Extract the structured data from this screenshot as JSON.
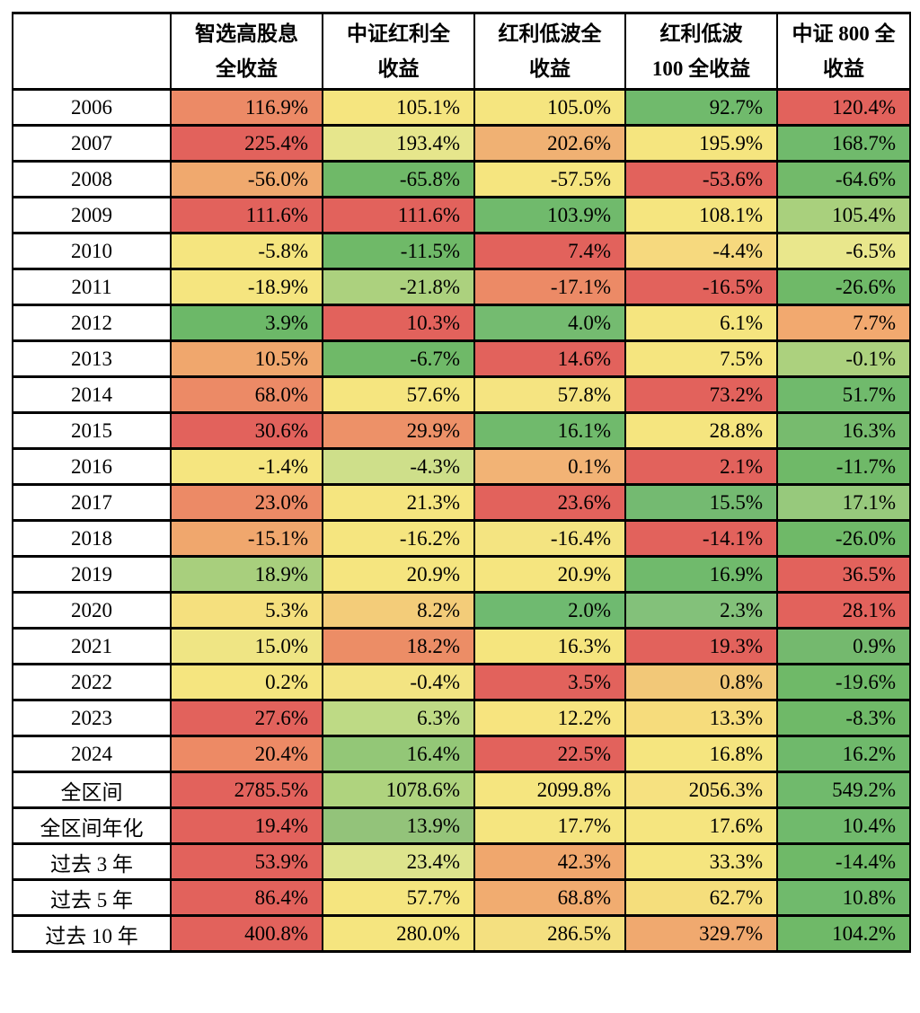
{
  "page": {
    "background": "#ffffff",
    "border_color": "#000000"
  },
  "table": {
    "corner_label": "",
    "columns": [
      {
        "label": "智选高股息\n全收益"
      },
      {
        "label": "中证红利全\n收益"
      },
      {
        "label": "红利低波全\n收益"
      },
      {
        "label": "红利低波\n100 全收益"
      },
      {
        "label": "中证 800 全\n收益"
      }
    ],
    "rows": [
      {
        "label": "2006",
        "cells": [
          {
            "v": "116.9%",
            "c": "#EC8A66"
          },
          {
            "v": "105.1%",
            "c": "#F5E57F"
          },
          {
            "v": "105.0%",
            "c": "#F5E57F"
          },
          {
            "v": "92.7%",
            "c": "#70BA6C"
          },
          {
            "v": "120.4%",
            "c": "#E2625C"
          }
        ]
      },
      {
        "label": "2007",
        "cells": [
          {
            "v": "225.4%",
            "c": "#E2625C"
          },
          {
            "v": "193.4%",
            "c": "#E6E68C"
          },
          {
            "v": "202.6%",
            "c": "#F0B173"
          },
          {
            "v": "195.9%",
            "c": "#F5E57F"
          },
          {
            "v": "168.7%",
            "c": "#70BA6C"
          }
        ]
      },
      {
        "label": "2008",
        "cells": [
          {
            "v": "-56.0%",
            "c": "#F0A96E"
          },
          {
            "v": "-65.8%",
            "c": "#6FB968"
          },
          {
            "v": "-57.5%",
            "c": "#F5E57F"
          },
          {
            "v": "-53.6%",
            "c": "#E2625C"
          },
          {
            "v": "-64.6%",
            "c": "#72BA6A"
          }
        ]
      },
      {
        "label": "2009",
        "cells": [
          {
            "v": "111.6%",
            "c": "#E2625C"
          },
          {
            "v": "111.6%",
            "c": "#E2625C"
          },
          {
            "v": "103.9%",
            "c": "#70BA6C"
          },
          {
            "v": "108.1%",
            "c": "#F5E57F"
          },
          {
            "v": "105.4%",
            "c": "#A9D07D"
          }
        ]
      },
      {
        "label": "2010",
        "cells": [
          {
            "v": "-5.8%",
            "c": "#F5E57F"
          },
          {
            "v": "-11.5%",
            "c": "#6FB968"
          },
          {
            "v": "7.4%",
            "c": "#E2625C"
          },
          {
            "v": "-4.4%",
            "c": "#F6D97E"
          },
          {
            "v": "-6.5%",
            "c": "#E9E78C"
          }
        ]
      },
      {
        "label": "2011",
        "cells": [
          {
            "v": "-18.9%",
            "c": "#F5E57F"
          },
          {
            "v": "-21.8%",
            "c": "#ACD17E"
          },
          {
            "v": "-17.1%",
            "c": "#EC8A66"
          },
          {
            "v": "-16.5%",
            "c": "#E2625C"
          },
          {
            "v": "-26.6%",
            "c": "#6FB968"
          }
        ]
      },
      {
        "label": "2012",
        "cells": [
          {
            "v": "3.9%",
            "c": "#6CB868"
          },
          {
            "v": "10.3%",
            "c": "#E2625C"
          },
          {
            "v": "4.0%",
            "c": "#74BB70"
          },
          {
            "v": "6.1%",
            "c": "#F5E57F"
          },
          {
            "v": "7.7%",
            "c": "#F2A96F"
          }
        ]
      },
      {
        "label": "2013",
        "cells": [
          {
            "v": "10.5%",
            "c": "#F0A76D"
          },
          {
            "v": "-6.7%",
            "c": "#6FB968"
          },
          {
            "v": "14.6%",
            "c": "#E2625C"
          },
          {
            "v": "7.5%",
            "c": "#F5E57F"
          },
          {
            "v": "-0.1%",
            "c": "#ACD17E"
          }
        ]
      },
      {
        "label": "2014",
        "cells": [
          {
            "v": "68.0%",
            "c": "#EC8A66"
          },
          {
            "v": "57.6%",
            "c": "#F5E57F"
          },
          {
            "v": "57.8%",
            "c": "#F5E481"
          },
          {
            "v": "73.2%",
            "c": "#E2625C"
          },
          {
            "v": "51.7%",
            "c": "#70BA6C"
          }
        ]
      },
      {
        "label": "2015",
        "cells": [
          {
            "v": "30.6%",
            "c": "#E2625C"
          },
          {
            "v": "29.9%",
            "c": "#ED9168"
          },
          {
            "v": "16.1%",
            "c": "#70BA6C"
          },
          {
            "v": "28.8%",
            "c": "#F5E57F"
          },
          {
            "v": "16.3%",
            "c": "#77BB6E"
          }
        ]
      },
      {
        "label": "2016",
        "cells": [
          {
            "v": "-1.4%",
            "c": "#F5E57F"
          },
          {
            "v": "-4.3%",
            "c": "#CEDF8A"
          },
          {
            "v": "0.1%",
            "c": "#F2B375"
          },
          {
            "v": "2.1%",
            "c": "#E2625C"
          },
          {
            "v": "-11.7%",
            "c": "#6FB968"
          }
        ]
      },
      {
        "label": "2017",
        "cells": [
          {
            "v": "23.0%",
            "c": "#EC8A66"
          },
          {
            "v": "21.3%",
            "c": "#F5E57F"
          },
          {
            "v": "23.6%",
            "c": "#E2625C"
          },
          {
            "v": "15.5%",
            "c": "#74BA71"
          },
          {
            "v": "17.1%",
            "c": "#97C97C"
          }
        ]
      },
      {
        "label": "2018",
        "cells": [
          {
            "v": "-15.1%",
            "c": "#F0A76D"
          },
          {
            "v": "-16.2%",
            "c": "#F5E57F"
          },
          {
            "v": "-16.4%",
            "c": "#F4E481"
          },
          {
            "v": "-14.1%",
            "c": "#E2625C"
          },
          {
            "v": "-26.0%",
            "c": "#6FB968"
          }
        ]
      },
      {
        "label": "2019",
        "cells": [
          {
            "v": "18.9%",
            "c": "#A8CF7D"
          },
          {
            "v": "20.9%",
            "c": "#F5E57F"
          },
          {
            "v": "20.9%",
            "c": "#F5E57F"
          },
          {
            "v": "16.9%",
            "c": "#70BA6C"
          },
          {
            "v": "36.5%",
            "c": "#E2625C"
          }
        ]
      },
      {
        "label": "2020",
        "cells": [
          {
            "v": "5.3%",
            "c": "#F5E07E"
          },
          {
            "v": "8.2%",
            "c": "#F3CC79"
          },
          {
            "v": "2.0%",
            "c": "#6FBA70"
          },
          {
            "v": "2.3%",
            "c": "#83C17A"
          },
          {
            "v": "28.1%",
            "c": "#E2625C"
          }
        ]
      },
      {
        "label": "2021",
        "cells": [
          {
            "v": "15.0%",
            "c": "#EFE584"
          },
          {
            "v": "18.2%",
            "c": "#EC8D66"
          },
          {
            "v": "16.3%",
            "c": "#F5E57E"
          },
          {
            "v": "19.3%",
            "c": "#E2625C"
          },
          {
            "v": "0.9%",
            "c": "#74B96E"
          }
        ]
      },
      {
        "label": "2022",
        "cells": [
          {
            "v": "0.2%",
            "c": "#F5E57F"
          },
          {
            "v": "-0.4%",
            "c": "#F3E482"
          },
          {
            "v": "3.5%",
            "c": "#E2625C"
          },
          {
            "v": "0.8%",
            "c": "#F2C878"
          },
          {
            "v": "-19.6%",
            "c": "#6FB968"
          }
        ]
      },
      {
        "label": "2023",
        "cells": [
          {
            "v": "27.6%",
            "c": "#E2625C"
          },
          {
            "v": "6.3%",
            "c": "#BEDA85"
          },
          {
            "v": "12.2%",
            "c": "#F7E47F"
          },
          {
            "v": "13.3%",
            "c": "#F6DC7C"
          },
          {
            "v": "-8.3%",
            "c": "#6FB968"
          }
        ]
      },
      {
        "label": "2024",
        "cells": [
          {
            "v": "20.4%",
            "c": "#ED8A65"
          },
          {
            "v": "16.4%",
            "c": "#93C777"
          },
          {
            "v": "22.5%",
            "c": "#E2625C"
          },
          {
            "v": "16.8%",
            "c": "#F5E57F"
          },
          {
            "v": "16.2%",
            "c": "#6FB96B"
          }
        ]
      },
      {
        "label": "全区间",
        "cells": [
          {
            "v": "2785.5%",
            "c": "#E2625C"
          },
          {
            "v": "1078.6%",
            "c": "#AFD37E"
          },
          {
            "v": "2099.8%",
            "c": "#F5E57F"
          },
          {
            "v": "2056.3%",
            "c": "#F6E180"
          },
          {
            "v": "549.2%",
            "c": "#70BA6C"
          }
        ]
      },
      {
        "label": "全区间年化",
        "cells": [
          {
            "v": "19.4%",
            "c": "#E2625C"
          },
          {
            "v": "13.9%",
            "c": "#93C37A"
          },
          {
            "v": "17.7%",
            "c": "#F5E57F"
          },
          {
            "v": "17.6%",
            "c": "#F5E57F"
          },
          {
            "v": "10.4%",
            "c": "#70BA6C"
          }
        ]
      },
      {
        "label": "过去 3 年",
        "cells": [
          {
            "v": "53.9%",
            "c": "#E2625C"
          },
          {
            "v": "23.4%",
            "c": "#DDE48D"
          },
          {
            "v": "42.3%",
            "c": "#F0A76D"
          },
          {
            "v": "33.3%",
            "c": "#F5E57F"
          },
          {
            "v": "-14.4%",
            "c": "#6FB968"
          }
        ]
      },
      {
        "label": "过去 5 年",
        "cells": [
          {
            "v": "86.4%",
            "c": "#E2625C"
          },
          {
            "v": "57.7%",
            "c": "#F5E57F"
          },
          {
            "v": "68.8%",
            "c": "#F1AC70"
          },
          {
            "v": "62.7%",
            "c": "#F5DE7C"
          },
          {
            "v": "10.8%",
            "c": "#70BA6C"
          }
        ]
      },
      {
        "label": "过去 10 年",
        "cells": [
          {
            "v": "400.8%",
            "c": "#E2625C"
          },
          {
            "v": "280.0%",
            "c": "#F5E57F"
          },
          {
            "v": "286.5%",
            "c": "#F4E080"
          },
          {
            "v": "329.7%",
            "c": "#F0A96F"
          },
          {
            "v": "104.2%",
            "c": "#6FB968"
          }
        ]
      }
    ]
  },
  "chart_data": {
    "type": "heatmap",
    "title": "",
    "columns": [
      "智选高股息全收益",
      "中证红利全收益",
      "红利低波全收益",
      "红利低波 100 全收益",
      "中证 800 全收益"
    ],
    "row_labels": [
      "2006",
      "2007",
      "2008",
      "2009",
      "2010",
      "2011",
      "2012",
      "2013",
      "2014",
      "2015",
      "2016",
      "2017",
      "2018",
      "2019",
      "2020",
      "2021",
      "2022",
      "2023",
      "2024",
      "全区间",
      "全区间年化",
      "过去 3 年",
      "过去 5 年",
      "过去 10 年"
    ],
    "values_pct": [
      [
        116.9,
        105.1,
        105.0,
        92.7,
        120.4
      ],
      [
        225.4,
        193.4,
        202.6,
        195.9,
        168.7
      ],
      [
        -56.0,
        -65.8,
        -57.5,
        -53.6,
        -64.6
      ],
      [
        111.6,
        111.6,
        103.9,
        108.1,
        105.4
      ],
      [
        -5.8,
        -11.5,
        7.4,
        -4.4,
        -6.5
      ],
      [
        -18.9,
        -21.8,
        -17.1,
        -16.5,
        -26.6
      ],
      [
        3.9,
        10.3,
        4.0,
        6.1,
        7.7
      ],
      [
        10.5,
        -6.7,
        14.6,
        7.5,
        -0.1
      ],
      [
        68.0,
        57.6,
        57.8,
        73.2,
        51.7
      ],
      [
        30.6,
        29.9,
        16.1,
        28.8,
        16.3
      ],
      [
        -1.4,
        -4.3,
        0.1,
        2.1,
        -11.7
      ],
      [
        23.0,
        21.3,
        23.6,
        15.5,
        17.1
      ],
      [
        -15.1,
        -16.2,
        -16.4,
        -14.1,
        -26.0
      ],
      [
        18.9,
        20.9,
        20.9,
        16.9,
        36.5
      ],
      [
        5.3,
        8.2,
        2.0,
        2.3,
        28.1
      ],
      [
        15.0,
        18.2,
        16.3,
        19.3,
        0.9
      ],
      [
        0.2,
        -0.4,
        3.5,
        0.8,
        -19.6
      ],
      [
        27.6,
        6.3,
        12.2,
        13.3,
        -8.3
      ],
      [
        20.4,
        16.4,
        22.5,
        16.8,
        16.2
      ],
      [
        2785.5,
        1078.6,
        2099.8,
        2056.3,
        549.2
      ],
      [
        19.4,
        13.9,
        17.7,
        17.6,
        10.4
      ],
      [
        53.9,
        23.4,
        42.3,
        33.3,
        -14.4
      ],
      [
        86.4,
        57.7,
        68.8,
        62.7,
        10.8
      ],
      [
        400.8,
        280.0,
        286.5,
        329.7,
        104.2
      ]
    ],
    "layout_hints": {
      "color_scale": "row-wise: red #E2625C = highest value in row, yellow #F5E57F = middle, green #6FB968 = lowest value in row",
      "grid": true,
      "cell_text_align": "right",
      "row_label_align": "center",
      "header_bold": true
    }
  }
}
